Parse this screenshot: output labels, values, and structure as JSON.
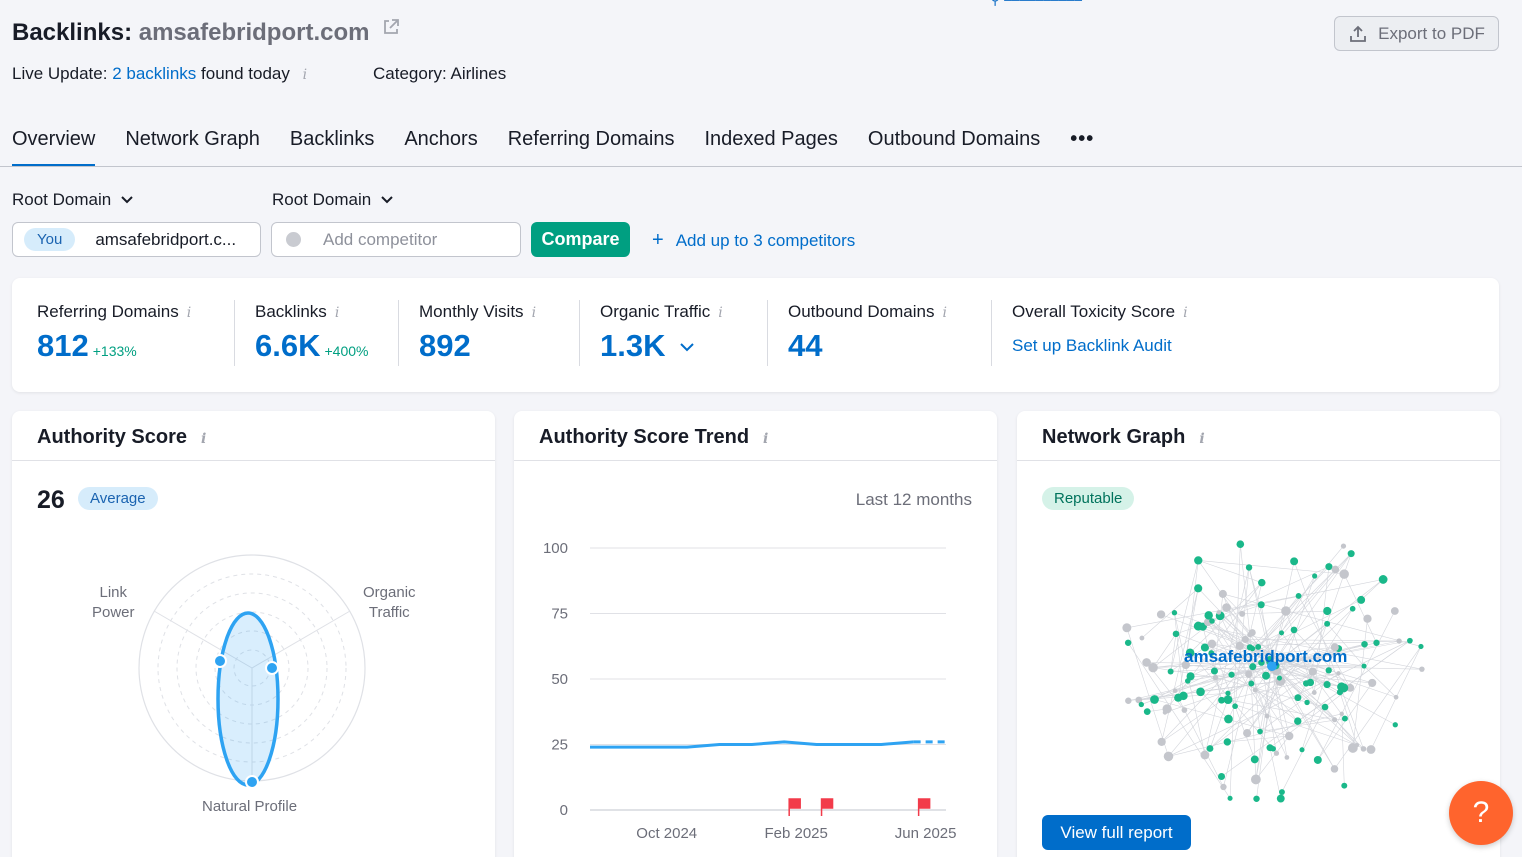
{
  "header": {
    "title_prefix": "Backlinks:",
    "domain": "amsafebridport.com",
    "export_label": "Export to PDF",
    "live_prefix": "Live Update:",
    "live_link": "2 backlinks",
    "live_suffix": "found today",
    "category": "Category: Airlines"
  },
  "tabs": [
    "Overview",
    "Network Graph",
    "Backlinks",
    "Anchors",
    "Referring Domains",
    "Indexed Pages",
    "Outbound Domains"
  ],
  "more_tabs": "•••",
  "compare": {
    "you_label": "Root Domain",
    "competitor_label": "Root Domain",
    "you_badge": "You",
    "you_domain": "amsafebridport.c...",
    "competitor_placeholder": "Add competitor",
    "compare_button": "Compare",
    "add_competitors": "Add up to 3 competitors"
  },
  "metrics": [
    {
      "label": "Referring Domains",
      "value": "812",
      "delta": "+133%"
    },
    {
      "label": "Backlinks",
      "value": "6.6K",
      "delta": "+400%"
    },
    {
      "label": "Monthly Visits",
      "value": "892",
      "delta": ""
    },
    {
      "label": "Organic Traffic",
      "value": "1.3K",
      "delta": ""
    },
    {
      "label": "Outbound Domains",
      "value": "44",
      "delta": ""
    },
    {
      "label": "Overall Toxicity Score",
      "link": "Set up Backlink Audit"
    }
  ],
  "authority": {
    "title": "Authority Score",
    "score": "26",
    "badge": "Average",
    "axes": {
      "link_power_1": "Link",
      "link_power_2": "Power",
      "organic_1": "Organic",
      "organic_2": "Traffic",
      "natural": "Natural Profile"
    }
  },
  "trend": {
    "title": "Authority Score Trend",
    "period": "Last 12 months"
  },
  "network": {
    "title": "Network Graph",
    "badge": "Reputable",
    "center_label": "amsafebridport.com",
    "button": "View full report"
  },
  "help_label": "?",
  "colors": {
    "accent": "#006dca",
    "green": "#009f81",
    "line": "#2ea3f2",
    "flag": "#f23b4a",
    "help": "#ff642d"
  },
  "chart_data": {
    "type": "line",
    "title": "Authority Score Trend",
    "x_ticks": [
      "Oct 2024",
      "Feb 2025",
      "Jun 2025"
    ],
    "y_ticks": [
      0,
      25,
      50,
      75,
      100
    ],
    "ylim": [
      0,
      100
    ],
    "series": [
      {
        "values": [
          24,
          24,
          24,
          24,
          25,
          25,
          26,
          25,
          25,
          25,
          26,
          26
        ]
      }
    ],
    "flags_at_month_index": [
      6,
      7,
      10
    ],
    "grid": true
  }
}
